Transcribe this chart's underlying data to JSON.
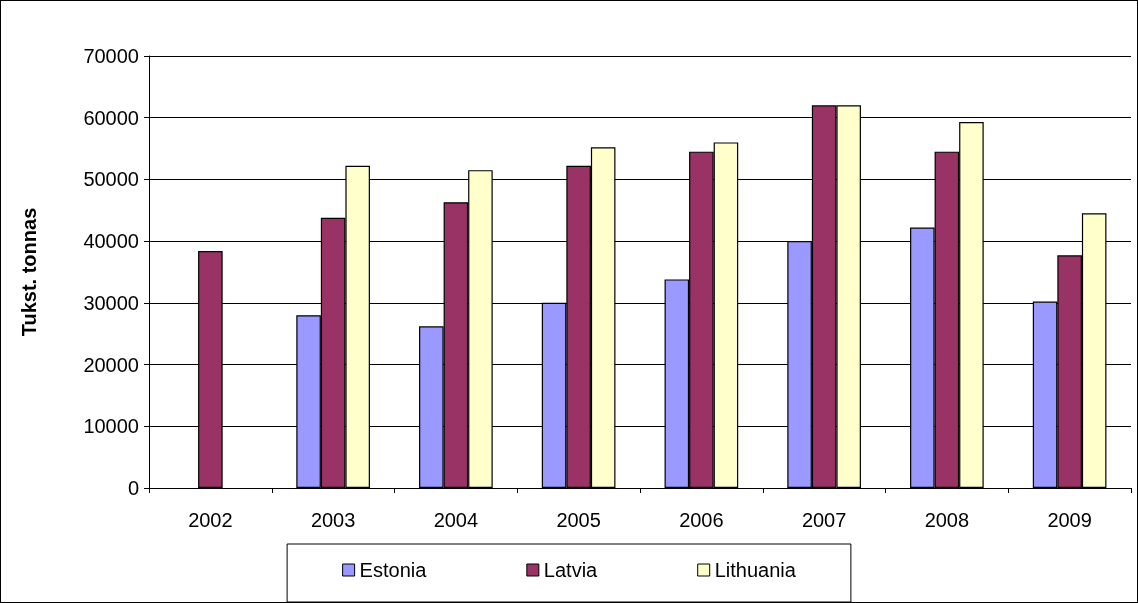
{
  "chart_data": {
    "type": "bar",
    "ylabel": "Tukst. tonnas",
    "categories": [
      "2002",
      "2003",
      "2004",
      "2005",
      "2006",
      "2007",
      "2008",
      "2009"
    ],
    "series": [
      {
        "name": "Estonia",
        "color": "#9999ff",
        "values": [
          null,
          28000,
          26200,
          30000,
          33800,
          40000,
          42200,
          30200
        ]
      },
      {
        "name": "Latvia",
        "color": "#993366",
        "values": [
          38400,
          43800,
          46300,
          52200,
          54500,
          62000,
          54500,
          37700
        ]
      },
      {
        "name": "Lithuania",
        "color": "#ffffcc",
        "values": [
          null,
          52200,
          51500,
          55200,
          56000,
          62000,
          59300,
          44500
        ]
      }
    ],
    "ylim": [
      0,
      70000
    ],
    "yticks": [
      0,
      10000,
      20000,
      30000,
      40000,
      50000,
      60000,
      70000
    ],
    "grid": "y",
    "legend": "bottom"
  }
}
